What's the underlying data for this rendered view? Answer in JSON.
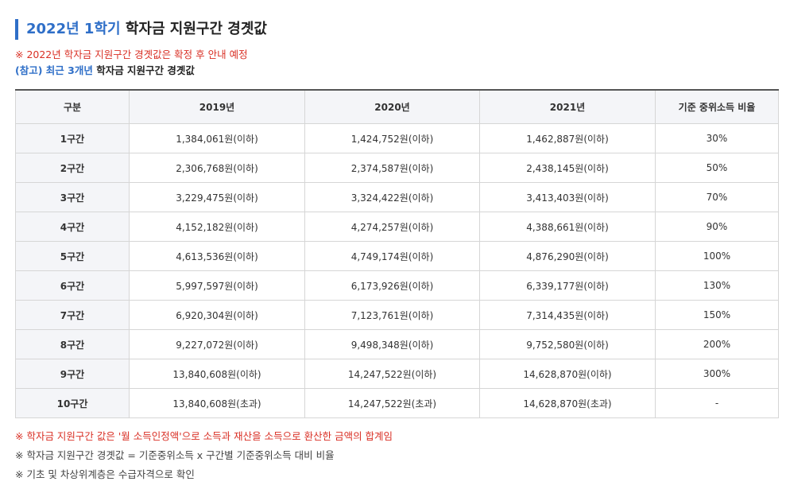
{
  "header": {
    "title_highlight": "2022년 1학기",
    "title_rest": "학자금 지원구간 경곗값",
    "notice": "※ 2022년 학자금 지원구간 경곗값은 확정 후 안내 예정",
    "ref_highlight": "(참고) 최근 3개년",
    "ref_rest": "학자금 지원구간 경곗값"
  },
  "table": {
    "columns": [
      "구분",
      "2019년",
      "2020년",
      "2021년",
      "기준 중위소득 비율"
    ],
    "rows": [
      [
        "1구간",
        "1,384,061원(이하)",
        "1,424,752원(이하)",
        "1,462,887원(이하)",
        "30%"
      ],
      [
        "2구간",
        "2,306,768원(이하)",
        "2,374,587원(이하)",
        "2,438,145원(이하)",
        "50%"
      ],
      [
        "3구간",
        "3,229,475원(이하)",
        "3,324,422원(이하)",
        "3,413,403원(이하)",
        "70%"
      ],
      [
        "4구간",
        "4,152,182원(이하)",
        "4,274,257원(이하)",
        "4,388,661원(이하)",
        "90%"
      ],
      [
        "5구간",
        "4,613,536원(이하)",
        "4,749,174원(이하)",
        "4,876,290원(이하)",
        "100%"
      ],
      [
        "6구간",
        "5,997,597원(이하)",
        "6,173,926원(이하)",
        "6,339,177원(이하)",
        "130%"
      ],
      [
        "7구간",
        "6,920,304원(이하)",
        "7,123,761원(이하)",
        "7,314,435원(이하)",
        "150%"
      ],
      [
        "8구간",
        "9,227,072원(이하)",
        "9,498,348원(이하)",
        "9,752,580원(이하)",
        "200%"
      ],
      [
        "9구간",
        "13,840,608원(이하)",
        "14,247,522원(이하)",
        "14,628,870원(이하)",
        "300%"
      ],
      [
        "10구간",
        "13,840,608원(초과)",
        "14,247,522원(초과)",
        "14,628,870원(초과)",
        "-"
      ]
    ]
  },
  "footnotes": [
    "※ 학자금 지원구간 값은 '월 소득인정액'으로 소득과 재산을 소득으로 환산한 금액의 합계임",
    "※ 학자금 지원구간 경곗값 = 기준중위소득 x 구간별 기준중위소득 대비 비율",
    "※ 기초 및 차상위계층은 수급자격으로 확인"
  ],
  "colors": {
    "accent": "#2f6fc8",
    "notice": "#d93025",
    "header_bg": "#f4f5f8"
  }
}
